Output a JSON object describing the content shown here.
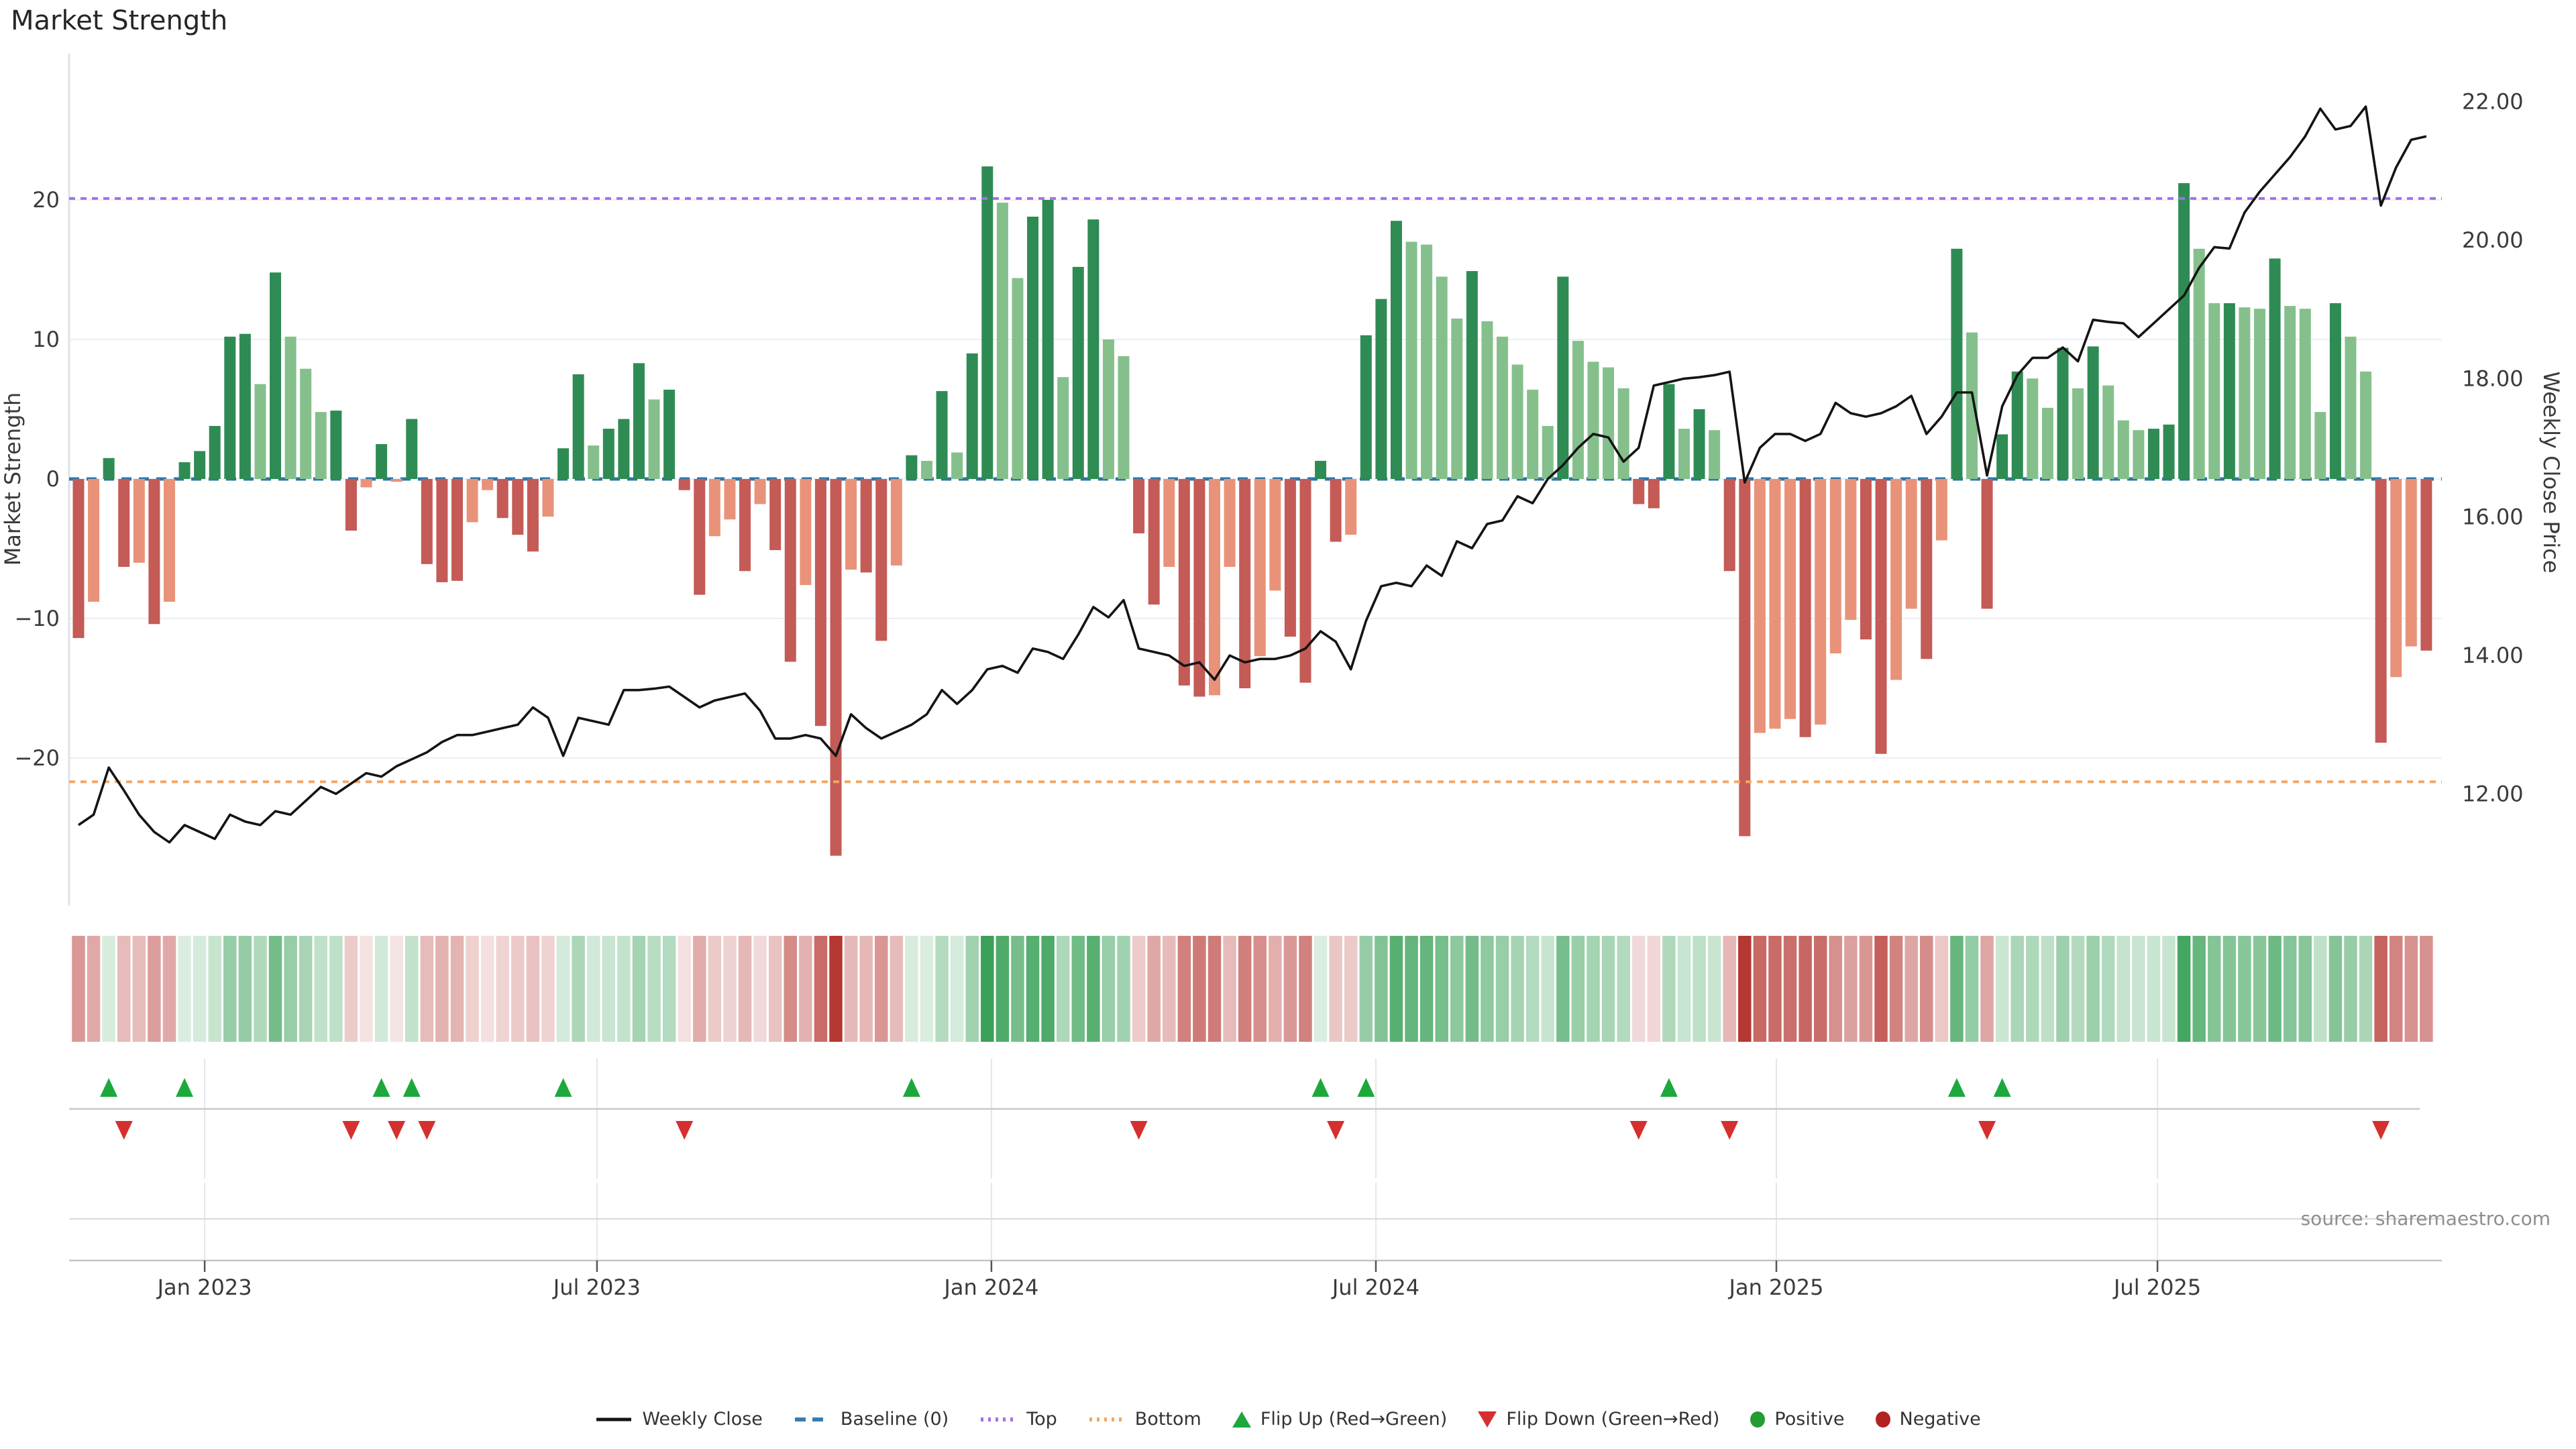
{
  "page": {
    "title": "Market Strength"
  },
  "chart_data": {
    "type": "combo: bar + line + heatmap + flip-markers",
    "title": "Market Strength",
    "source": "source: sharemaestro.com",
    "left_axis": {
      "label": "Market Strength",
      "ticks": [
        "20",
        "10",
        "0",
        "−10",
        "−20"
      ],
      "tick_values": [
        20,
        10,
        0,
        -10,
        -20
      ],
      "ylim": [
        -30.5,
        30.5
      ]
    },
    "right_axis": {
      "label": "Weekly Close Price",
      "ticks": [
        "22.00",
        "20.00",
        "18.00",
        "16.00",
        "14.00",
        "12.00"
      ],
      "tick_values": [
        22,
        20,
        18,
        16,
        14,
        12
      ],
      "price_at_zero_strength": 16.55,
      "price_per_strength_unit": 0.2016
    },
    "x_axis": {
      "ticks": [
        {
          "label": "Jan 2023",
          "week": 8.33
        },
        {
          "label": "Jul 2023",
          "week": 34.23
        },
        {
          "label": "Jan 2024",
          "week": 60.27
        },
        {
          "label": "Jul 2024",
          "week": 85.65
        },
        {
          "label": "Jan 2025",
          "week": 112.09
        },
        {
          "label": "Jul 2025",
          "week": 137.25
        }
      ]
    },
    "reference_lines": {
      "baseline": 0,
      "top": 20.1,
      "bottom": -21.7
    },
    "market_strength_bars": [
      [
        -11.4,
        "d"
      ],
      [
        -8.8,
        "l"
      ],
      [
        1.5,
        "d"
      ],
      [
        -6.3,
        "d"
      ],
      [
        -6.0,
        "l"
      ],
      [
        -10.4,
        "d"
      ],
      [
        -8.8,
        "l"
      ],
      [
        1.2,
        "d"
      ],
      [
        2.0,
        "d"
      ],
      [
        3.8,
        "d"
      ],
      [
        10.2,
        "d"
      ],
      [
        10.4,
        "d"
      ],
      [
        6.8,
        "l"
      ],
      [
        14.8,
        "d"
      ],
      [
        10.2,
        "l"
      ],
      [
        7.9,
        "l"
      ],
      [
        4.8,
        "l"
      ],
      [
        4.9,
        "d"
      ],
      [
        -3.7,
        "d"
      ],
      [
        -0.6,
        "l"
      ],
      [
        2.5,
        "d"
      ],
      [
        -0.2,
        "l"
      ],
      [
        4.3,
        "d"
      ],
      [
        -6.1,
        "d"
      ],
      [
        -7.4,
        "d"
      ],
      [
        -7.3,
        "d"
      ],
      [
        -3.1,
        "l"
      ],
      [
        -0.8,
        "l"
      ],
      [
        -2.8,
        "d"
      ],
      [
        -4.0,
        "d"
      ],
      [
        -5.2,
        "d"
      ],
      [
        -2.7,
        "l"
      ],
      [
        2.2,
        "d"
      ],
      [
        7.5,
        "d"
      ],
      [
        2.4,
        "l"
      ],
      [
        3.6,
        "d"
      ],
      [
        4.3,
        "d"
      ],
      [
        8.3,
        "d"
      ],
      [
        5.7,
        "l"
      ],
      [
        6.4,
        "d"
      ],
      [
        -0.8,
        "d"
      ],
      [
        -8.3,
        "d"
      ],
      [
        -4.1,
        "l"
      ],
      [
        -2.9,
        "l"
      ],
      [
        -6.6,
        "d"
      ],
      [
        -1.8,
        "l"
      ],
      [
        -5.1,
        "d"
      ],
      [
        -13.1,
        "d"
      ],
      [
        -7.6,
        "l"
      ],
      [
        -17.7,
        "d"
      ],
      [
        -27.0,
        "d"
      ],
      [
        -6.5,
        "l"
      ],
      [
        -6.7,
        "d"
      ],
      [
        -11.6,
        "d"
      ],
      [
        -6.2,
        "l"
      ],
      [
        1.7,
        "d"
      ],
      [
        1.3,
        "l"
      ],
      [
        6.3,
        "d"
      ],
      [
        1.9,
        "l"
      ],
      [
        9.0,
        "d"
      ],
      [
        22.4,
        "d"
      ],
      [
        19.8,
        "l"
      ],
      [
        14.4,
        "l"
      ],
      [
        18.8,
        "d"
      ],
      [
        20.0,
        "d"
      ],
      [
        7.3,
        "l"
      ],
      [
        15.2,
        "d"
      ],
      [
        18.6,
        "d"
      ],
      [
        10.0,
        "l"
      ],
      [
        8.8,
        "l"
      ],
      [
        -3.9,
        "d"
      ],
      [
        -9.0,
        "d"
      ],
      [
        -6.3,
        "l"
      ],
      [
        -14.8,
        "d"
      ],
      [
        -15.6,
        "d"
      ],
      [
        -15.5,
        "l"
      ],
      [
        -6.3,
        "l"
      ],
      [
        -15.0,
        "d"
      ],
      [
        -12.7,
        "l"
      ],
      [
        -8.0,
        "l"
      ],
      [
        -11.3,
        "d"
      ],
      [
        -14.6,
        "d"
      ],
      [
        1.3,
        "d"
      ],
      [
        -4.5,
        "d"
      ],
      [
        -4.0,
        "l"
      ],
      [
        10.3,
        "d"
      ],
      [
        12.9,
        "d"
      ],
      [
        18.5,
        "d"
      ],
      [
        17.0,
        "l"
      ],
      [
        16.8,
        "l"
      ],
      [
        14.5,
        "l"
      ],
      [
        11.5,
        "l"
      ],
      [
        14.9,
        "d"
      ],
      [
        11.3,
        "l"
      ],
      [
        10.2,
        "l"
      ],
      [
        8.2,
        "l"
      ],
      [
        6.4,
        "l"
      ],
      [
        3.8,
        "l"
      ],
      [
        14.5,
        "d"
      ],
      [
        9.9,
        "l"
      ],
      [
        8.4,
        "l"
      ],
      [
        8.0,
        "l"
      ],
      [
        6.5,
        "l"
      ],
      [
        -1.8,
        "d"
      ],
      [
        -2.1,
        "d"
      ],
      [
        6.8,
        "d"
      ],
      [
        3.6,
        "l"
      ],
      [
        5.0,
        "d"
      ],
      [
        3.5,
        "l"
      ],
      [
        -6.6,
        "d"
      ],
      [
        -25.6,
        "d"
      ],
      [
        -18.2,
        "l"
      ],
      [
        -17.9,
        "l"
      ],
      [
        -17.2,
        "l"
      ],
      [
        -18.5,
        "d"
      ],
      [
        -17.6,
        "l"
      ],
      [
        -12.5,
        "l"
      ],
      [
        -10.1,
        "l"
      ],
      [
        -11.5,
        "d"
      ],
      [
        -19.7,
        "d"
      ],
      [
        -14.4,
        "l"
      ],
      [
        -9.3,
        "l"
      ],
      [
        -12.9,
        "d"
      ],
      [
        -4.4,
        "l"
      ],
      [
        16.5,
        "d"
      ],
      [
        10.5,
        "l"
      ],
      [
        -9.3,
        "d"
      ],
      [
        3.2,
        "d"
      ],
      [
        7.7,
        "d"
      ],
      [
        7.2,
        "l"
      ],
      [
        5.1,
        "l"
      ],
      [
        9.4,
        "d"
      ],
      [
        6.5,
        "l"
      ],
      [
        9.5,
        "d"
      ],
      [
        6.7,
        "l"
      ],
      [
        4.2,
        "l"
      ],
      [
        3.5,
        "l"
      ],
      [
        3.6,
        "d"
      ],
      [
        3.9,
        "d"
      ],
      [
        21.2,
        "d"
      ],
      [
        16.5,
        "l"
      ],
      [
        12.6,
        "l"
      ],
      [
        12.6,
        "d"
      ],
      [
        12.3,
        "l"
      ],
      [
        12.2,
        "l"
      ],
      [
        15.8,
        "d"
      ],
      [
        12.4,
        "l"
      ],
      [
        12.2,
        "l"
      ],
      [
        4.8,
        "l"
      ],
      [
        12.6,
        "d"
      ],
      [
        10.2,
        "l"
      ],
      [
        7.7,
        "l"
      ],
      [
        -18.9,
        "d"
      ],
      [
        -14.2,
        "l"
      ],
      [
        -12.0,
        "l"
      ],
      [
        -12.3,
        "d"
      ]
    ],
    "weekly_close": [
      11.55,
      11.7,
      12.38,
      12.05,
      11.7,
      11.45,
      11.3,
      11.55,
      11.45,
      11.35,
      11.7,
      11.6,
      11.55,
      11.75,
      11.7,
      11.9,
      12.1,
      12.0,
      12.15,
      12.3,
      12.25,
      12.4,
      12.5,
      12.6,
      12.75,
      12.85,
      12.85,
      12.9,
      12.95,
      13.0,
      13.25,
      13.1,
      12.55,
      13.1,
      13.05,
      13.0,
      13.5,
      13.5,
      13.52,
      13.55,
      13.4,
      13.25,
      13.35,
      13.4,
      13.45,
      13.2,
      12.8,
      12.8,
      12.85,
      12.8,
      12.55,
      13.15,
      12.95,
      12.8,
      12.9,
      13.0,
      13.15,
      13.5,
      13.3,
      13.5,
      13.8,
      13.85,
      13.75,
      14.1,
      14.05,
      13.95,
      14.3,
      14.7,
      14.55,
      14.8,
      14.1,
      14.05,
      14.0,
      13.85,
      13.9,
      13.65,
      14.0,
      13.9,
      13.95,
      13.95,
      14.0,
      14.1,
      14.35,
      14.2,
      13.8,
      14.5,
      15.0,
      15.05,
      15.0,
      15.3,
      15.15,
      15.65,
      15.55,
      15.9,
      15.95,
      16.3,
      16.2,
      16.55,
      16.75,
      17.0,
      17.2,
      17.15,
      16.8,
      17.0,
      17.9,
      17.95,
      18.0,
      18.02,
      18.05,
      18.1,
      16.5,
      17.0,
      17.2,
      17.2,
      17.1,
      17.2,
      17.65,
      17.5,
      17.45,
      17.5,
      17.6,
      17.75,
      17.2,
      17.45,
      17.8,
      17.8,
      16.6,
      17.6,
      18.05,
      18.3,
      18.3,
      18.45,
      18.25,
      18.85,
      18.82,
      18.8,
      18.6,
      18.8,
      19.0,
      19.2,
      19.6,
      19.9,
      19.88,
      20.4,
      20.7,
      20.95,
      21.2,
      21.5,
      21.9,
      21.6,
      21.65,
      21.93,
      20.5,
      21.05,
      21.45,
      21.5
    ],
    "legend": [
      {
        "name": "weekly-close",
        "label": "Weekly Close",
        "swatch": "line",
        "color": "#141414"
      },
      {
        "name": "baseline",
        "label": "Baseline (0)",
        "swatch": "dashes",
        "color": "#3a7cb0"
      },
      {
        "name": "top",
        "label": "Top",
        "swatch": "dots",
        "color": "#a370e9"
      },
      {
        "name": "bottom",
        "label": "Bottom",
        "swatch": "dots",
        "color": "#f2a665"
      },
      {
        "name": "flip-up",
        "label": "Flip Up (Red→Green)",
        "swatch": "triangle-up",
        "color": "#1da83c"
      },
      {
        "name": "flip-down",
        "label": "Flip Down (Green→Red)",
        "swatch": "triangle-down",
        "color": "#d62f2f"
      },
      {
        "name": "positive",
        "label": "Positive",
        "swatch": "dot",
        "color": "#259b33"
      },
      {
        "name": "negative",
        "label": "Negative",
        "swatch": "dot",
        "color": "#b22222"
      }
    ],
    "colors": {
      "bar_pos_dark": "#2F8B54",
      "bar_pos_light": "#85C08C",
      "bar_neg_dark": "#C45B56",
      "bar_neg_light": "#E89379",
      "price_line": "#141414",
      "baseline": "#2A76AD",
      "top_line": "#A370E9",
      "bottom_line": "#F2A665",
      "heat_pos_base": [
        25,
        145,
        60
      ],
      "heat_neg_base": [
        178,
        45,
        40
      ],
      "grid": "#edf0f3",
      "panel_grid": "#e6e6ea",
      "spine": "#c2c6ca",
      "divider": "#c9c9c9",
      "tick_text": "#3a3a3a"
    }
  }
}
